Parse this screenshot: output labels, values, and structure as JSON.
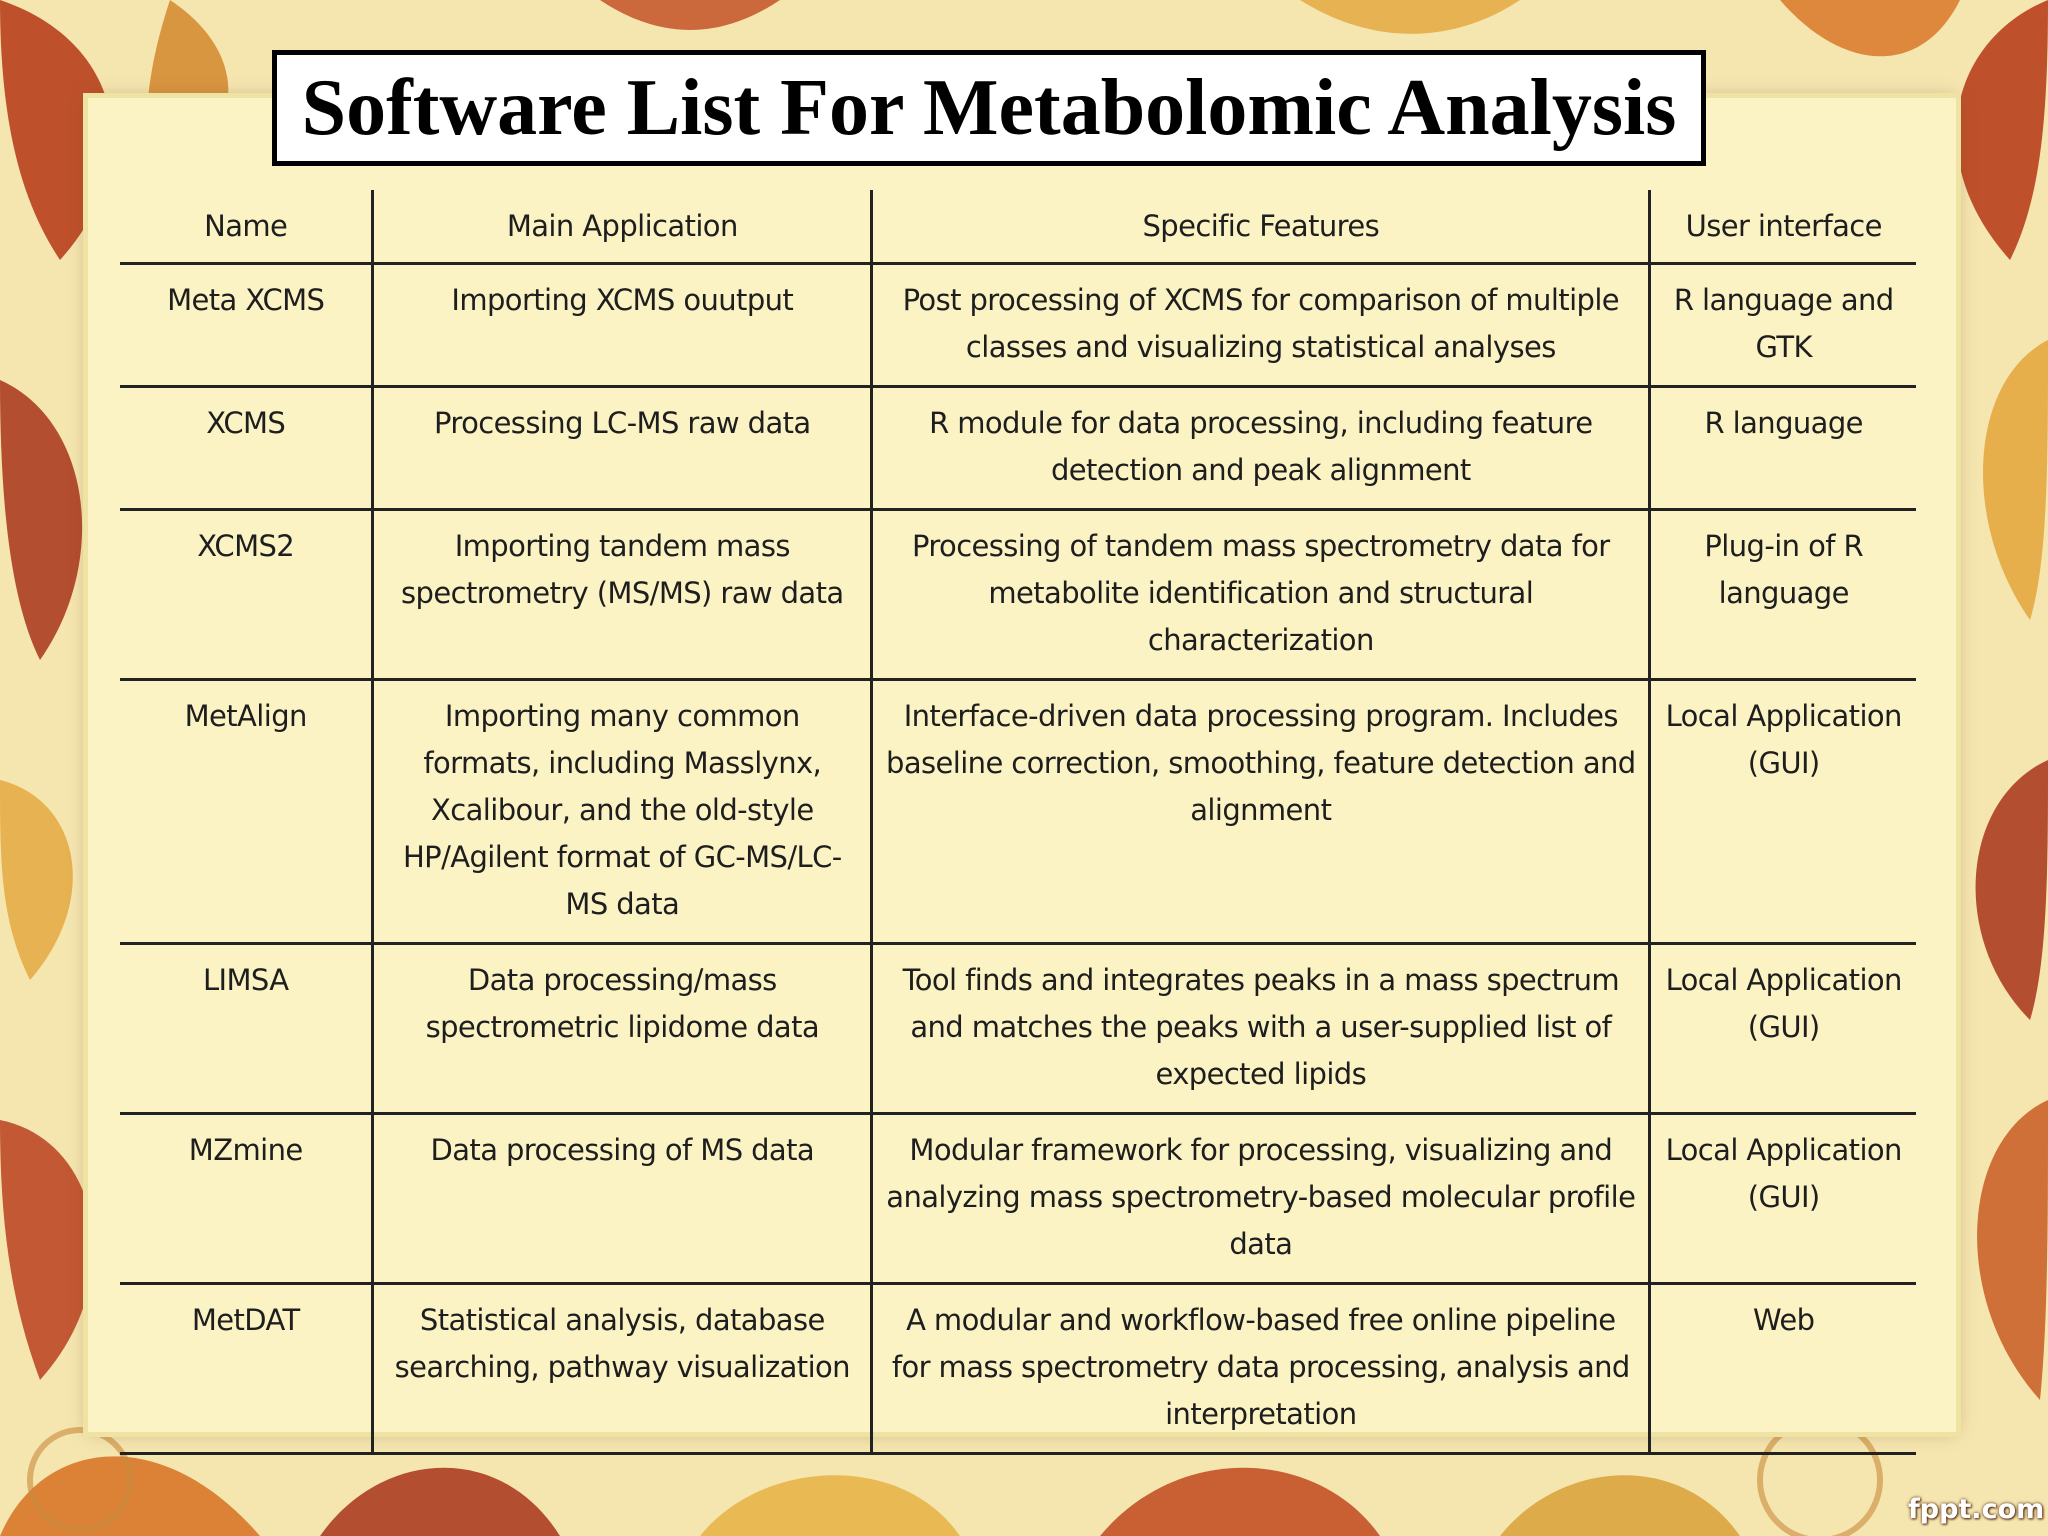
{
  "title": "Software List For Metabolomic Analysis",
  "table": {
    "headers": [
      "Name",
      "Main Application",
      "Specific Features",
      "User interface"
    ],
    "rows": [
      [
        "Meta XCMS",
        "Importing XCMS ouutput",
        "Post processing of XCMS for comparison of multiple classes and visualizing statistical analyses",
        "R language and GTK"
      ],
      [
        "XCMS",
        "Processing LC-MS raw data",
        "R module for data processing, including feature detection and peak alignment",
        "R language"
      ],
      [
        "XCMS2",
        "Importing tandem mass spectrometry (MS/MS) raw data",
        "Processing of tandem mass spectrometry data for metabolite identification and structural characterization",
        "Plug-in of R language"
      ],
      [
        "MetAlign",
        "Importing many common formats, including Masslynx, Xcalibour, and the old-style HP/Agilent format of GC-MS/LC-MS data",
        "Interface-driven data processing program. Includes baseline correction, smoothing, feature detection and alignment",
        "Local Application (GUI)"
      ],
      [
        "LIMSA",
        "Data processing/mass spectrometric lipidome data",
        "Tool finds and integrates peaks in a mass spectrum and matches the peaks with a user-supplied list of expected lipids",
        "Local Application (GUI)"
      ],
      [
        "MZmine",
        "Data processing of MS data",
        "Modular framework for processing, visualizing and analyzing mass spectrometry-based molecular profile data",
        "Local Application (GUI)"
      ],
      [
        "MetDAT",
        "Statistical analysis, database searching, pathway visualization",
        "A modular and workflow-based free online pipeline for mass spectrometry data processing, analysis and interpretation",
        "Web"
      ]
    ]
  },
  "footer": "fppt.com"
}
